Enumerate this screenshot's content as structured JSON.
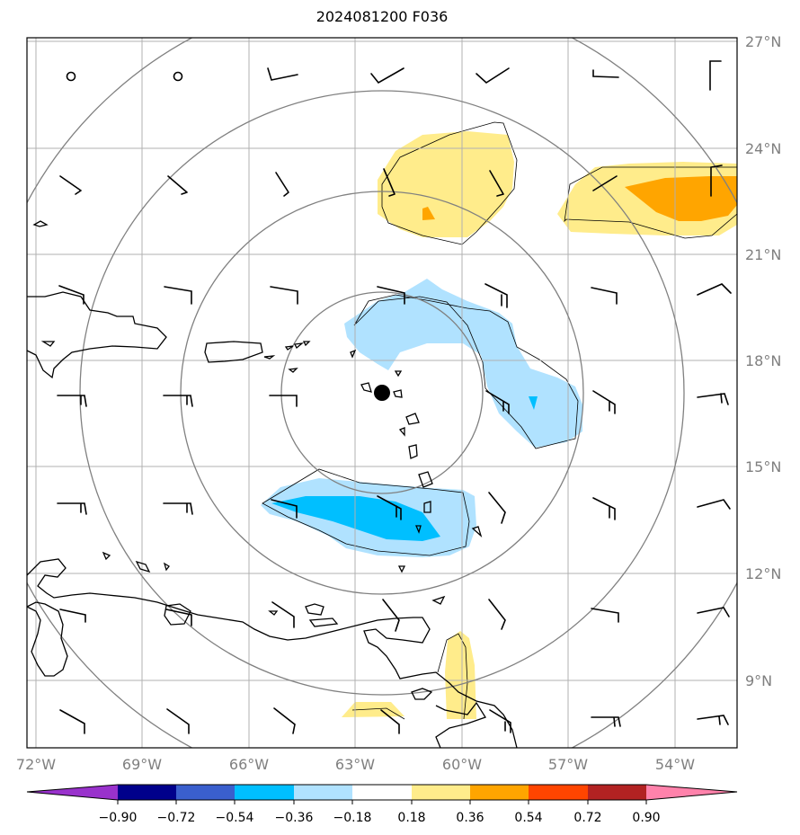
{
  "title": "2024081200 F036",
  "map": {
    "lon_labels": [
      "72°W",
      "69°W",
      "66°W",
      "63°W",
      "60°W",
      "57°W",
      "54°W"
    ],
    "lat_labels": [
      "27°N",
      "24°N",
      "21°N",
      "18°N",
      "15°N",
      "12°N",
      "9°N"
    ],
    "lon_range": [
      -72.2,
      -52.2
    ],
    "lat_range": [
      7.2,
      27.1
    ],
    "center_marker": {
      "lon": -62.3,
      "lat": 17.1
    },
    "range_rings": 4,
    "grid": true
  },
  "colorbar": {
    "ticks": [
      "−0.90",
      "−0.72",
      "−0.54",
      "−0.36",
      "−0.18",
      "0.18",
      "0.36",
      "0.54",
      "0.72",
      "0.90"
    ],
    "colors": [
      "#9932cc",
      "#00008b",
      "#3a5fcd",
      "#00bfff",
      "#b0e2ff",
      "#ffffff",
      "#ffec8b",
      "#ffa500",
      "#ff4500",
      "#b22222",
      "#ff82ab"
    ],
    "extend": "both"
  }
}
